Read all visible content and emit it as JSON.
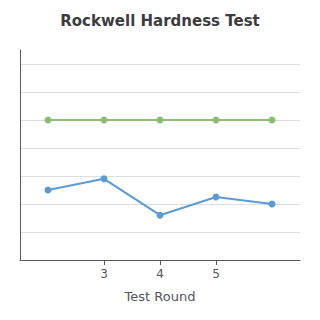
{
  "chart_data": {
    "type": "line",
    "title": "Rockwell Hardness Test",
    "xlabel": "Test Round",
    "x": [
      2,
      3,
      4,
      5,
      6
    ],
    "series": [
      {
        "color": "#8FBC72",
        "values": [
          62,
          62,
          62,
          62,
          62
        ],
        "marker": "circle"
      },
      {
        "color": "#5B9BD5",
        "values": [
          57.0,
          57.8,
          55.2,
          56.5,
          56.0
        ],
        "marker": "circle"
      }
    ],
    "xlim": [
      1.5,
      6.5
    ],
    "xticks": [
      3,
      4,
      5
    ],
    "ylim": [
      52,
      67
    ],
    "yticks": [
      52,
      54,
      56,
      58,
      60,
      62,
      64,
      66
    ],
    "grid": true,
    "tick_labels": "x"
  }
}
